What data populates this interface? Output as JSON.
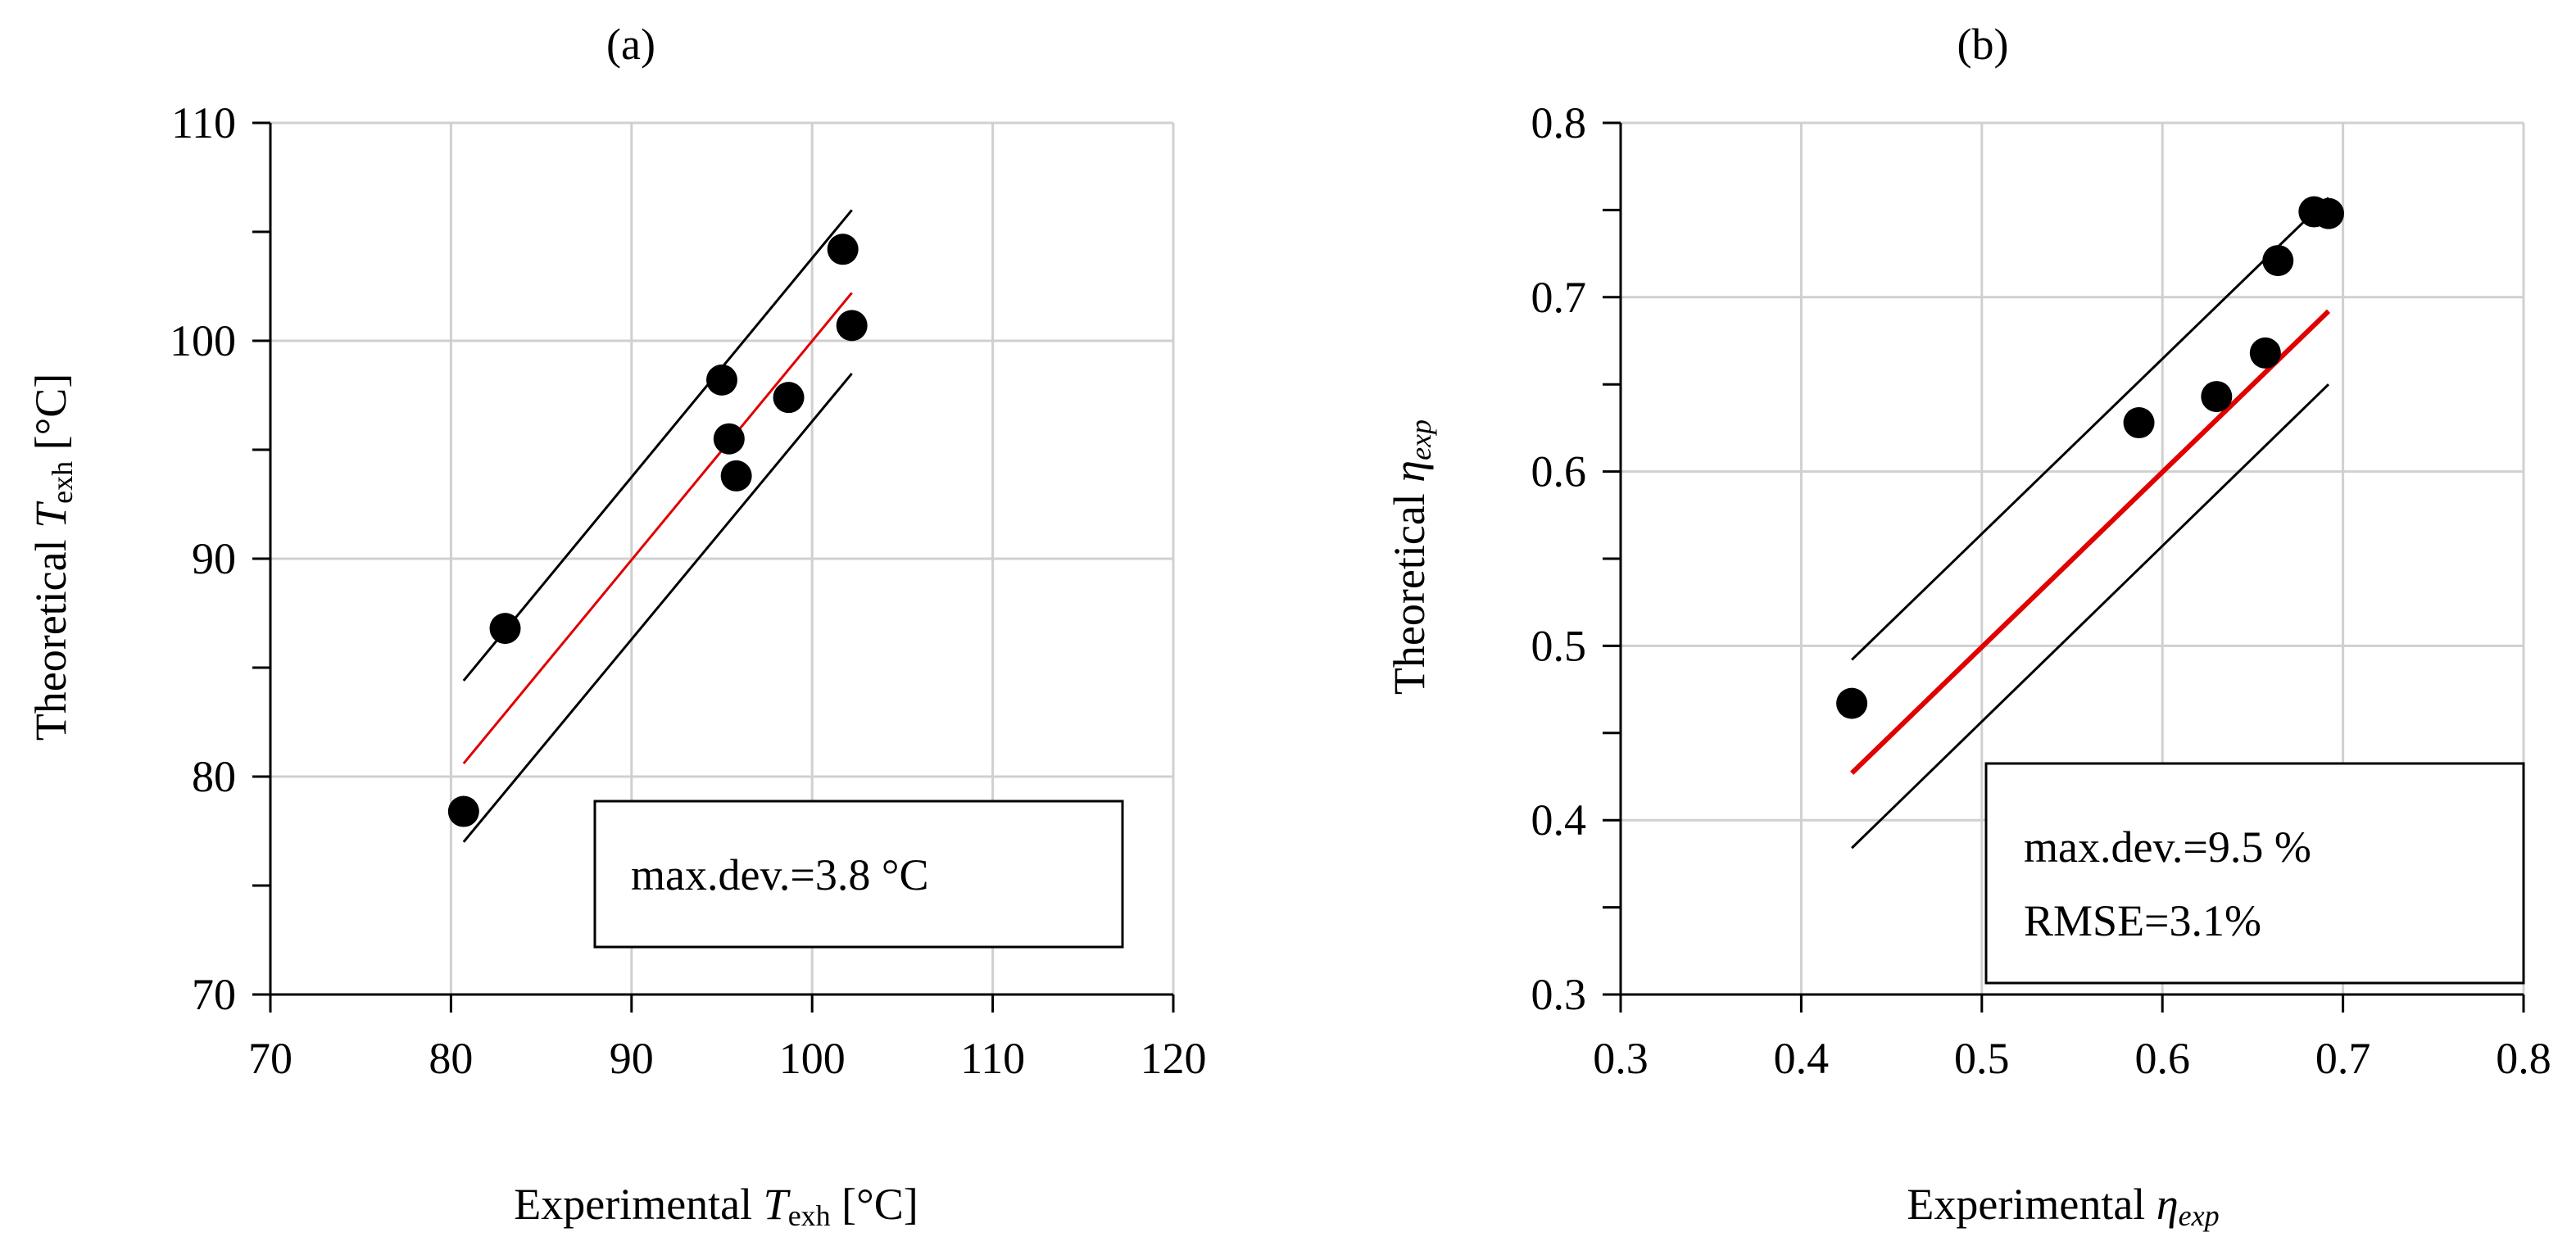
{
  "chart_data": [
    {
      "type": "scatter",
      "panel_label": "(a)",
      "xlabel": {
        "pre": "Experimental ",
        "var": "T",
        "sub": "exh",
        "post": " [°C]"
      },
      "ylabel": {
        "pre": "Theoretical ",
        "var": "T",
        "sub": "exh",
        "post": " [°C]"
      },
      "xlim": [
        70,
        120
      ],
      "ylim": [
        70,
        110
      ],
      "x_ticks": [
        70,
        80,
        90,
        100,
        110,
        120
      ],
      "y_ticks": [
        70,
        80,
        90,
        100,
        110
      ],
      "y_minor_ticks": [
        75,
        85,
        95,
        105
      ],
      "x_grid": [
        80,
        90,
        100,
        110,
        120
      ],
      "y_grid": [
        80,
        90,
        100,
        110
      ],
      "points": [
        {
          "x": 80.7,
          "y": 78.4
        },
        {
          "x": 83.0,
          "y": 86.8
        },
        {
          "x": 95.0,
          "y": 98.2
        },
        {
          "x": 95.4,
          "y": 95.5
        },
        {
          "x": 95.8,
          "y": 93.8
        },
        {
          "x": 98.7,
          "y": 97.4
        },
        {
          "x": 101.7,
          "y": 104.2
        },
        {
          "x": 102.2,
          "y": 100.7
        }
      ],
      "lines": [
        {
          "name": "upper-bound",
          "color": "#000000",
          "width": 3,
          "x": [
            80.7,
            102.2
          ],
          "y": [
            84.4,
            106.0
          ]
        },
        {
          "name": "fit",
          "color": "#e00000",
          "width": 3,
          "x": [
            80.7,
            102.2
          ],
          "y": [
            80.6,
            102.2
          ]
        },
        {
          "name": "lower-bound",
          "color": "#000000",
          "width": 3,
          "x": [
            80.7,
            102.2
          ],
          "y": [
            77.0,
            98.5
          ]
        }
      ],
      "annotations": [
        "max.dev.=3.8 °C"
      ]
    },
    {
      "type": "scatter",
      "panel_label": "(b)",
      "xlabel": {
        "pre": "Experimental ",
        "var": "η",
        "sub": "exp",
        "post": ""
      },
      "ylabel": {
        "pre": "Theoretical ",
        "var": "η",
        "sub": "exp",
        "post": ""
      },
      "xlim": [
        0.3,
        0.8
      ],
      "ylim": [
        0.3,
        0.8
      ],
      "x_ticks": [
        0.3,
        0.4,
        0.5,
        0.6,
        0.7,
        0.8
      ],
      "y_ticks": [
        0.3,
        0.4,
        0.5,
        0.6,
        0.7,
        0.8
      ],
      "y_minor_ticks": [
        0.35,
        0.45,
        0.55,
        0.65,
        0.75
      ],
      "x_grid": [
        0.4,
        0.5,
        0.6,
        0.7,
        0.8
      ],
      "y_grid": [
        0.4,
        0.5,
        0.6,
        0.7,
        0.8
      ],
      "points": [
        {
          "x": 0.428,
          "y": 0.467
        },
        {
          "x": 0.587,
          "y": 0.628
        },
        {
          "x": 0.63,
          "y": 0.643
        },
        {
          "x": 0.657,
          "y": 0.668
        },
        {
          "x": 0.664,
          "y": 0.721
        },
        {
          "x": 0.684,
          "y": 0.749
        },
        {
          "x": 0.692,
          "y": 0.748
        }
      ],
      "lines": [
        {
          "name": "upper-bound",
          "color": "#000000",
          "width": 3,
          "x": [
            0.428,
            0.692
          ],
          "y": [
            0.492,
            0.757
          ]
        },
        {
          "name": "fit",
          "color": "#e00000",
          "width": 6,
          "x": [
            0.428,
            0.692
          ],
          "y": [
            0.427,
            0.692
          ]
        },
        {
          "name": "lower-bound",
          "color": "#000000",
          "width": 3,
          "x": [
            0.428,
            0.692
          ],
          "y": [
            0.384,
            0.65
          ]
        }
      ],
      "annotations": [
        "max.dev.=9.5 %",
        "RMSE=3.1%"
      ]
    }
  ]
}
